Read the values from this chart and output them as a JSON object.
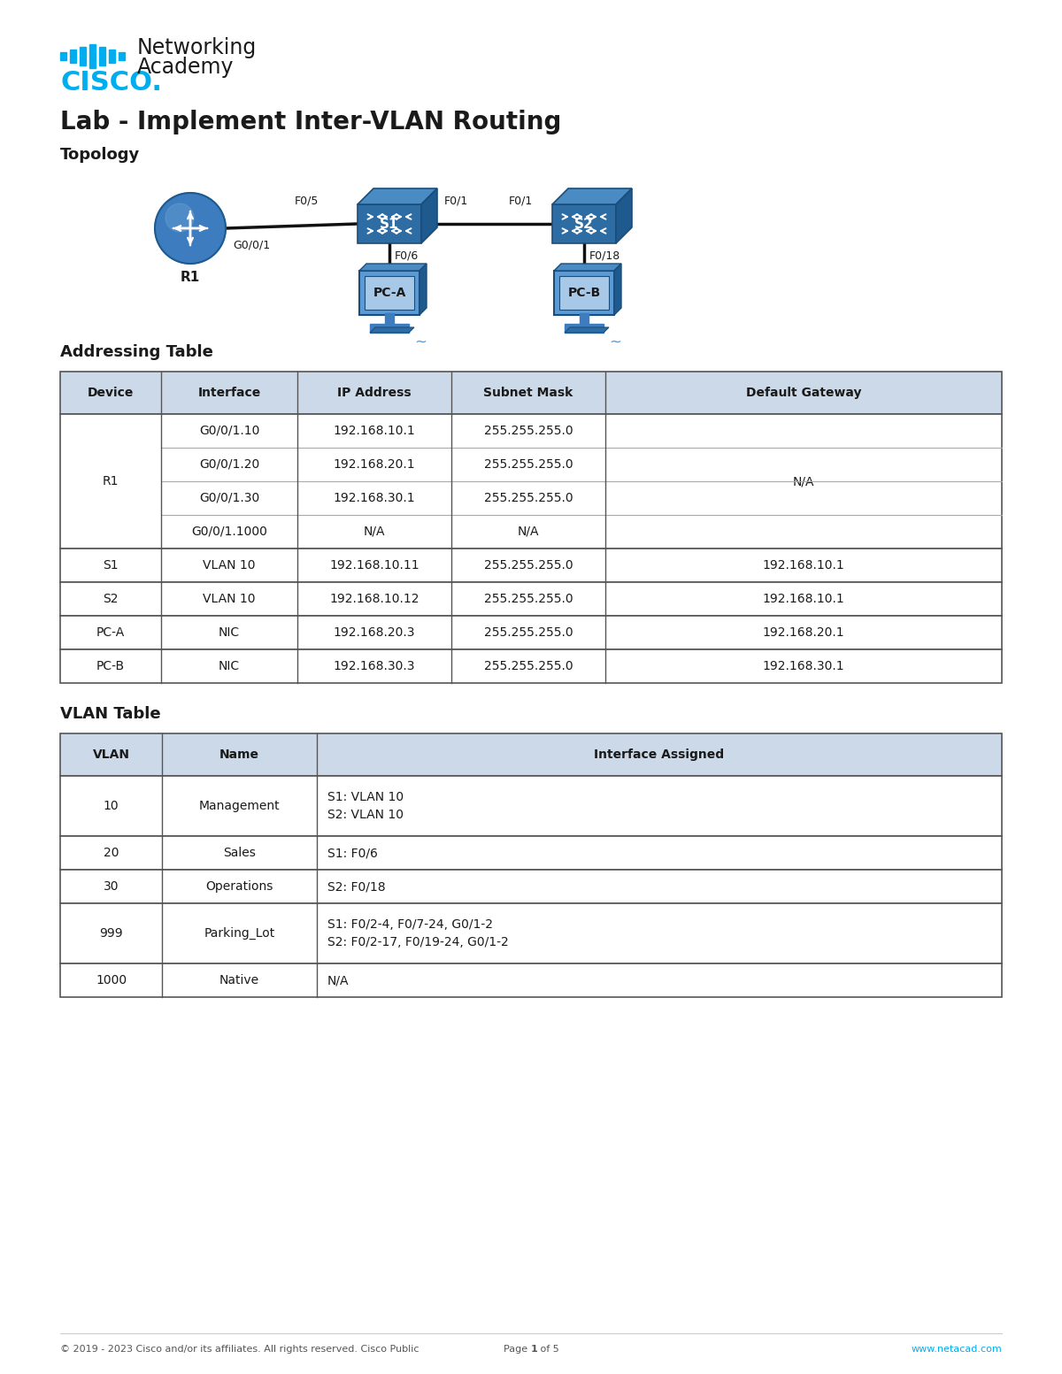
{
  "title": "Lab - Implement Inter-VLAN Routing",
  "topology_label": "Topology",
  "addressing_table_label": "Addressing Table",
  "vlan_table_label": "VLAN Table",
  "addr_headers": [
    "Device",
    "Interface",
    "IP Address",
    "Subnet Mask",
    "Default Gateway"
  ],
  "addr_rows": [
    [
      "R1",
      "G0/0/1.10",
      "192.168.10.1",
      "255.255.255.0",
      "N/A"
    ],
    [
      "",
      "G0/0/1.20",
      "192.168.20.1",
      "255.255.255.0",
      ""
    ],
    [
      "",
      "G0/0/1.30",
      "192.168.30.1",
      "255.255.255.0",
      ""
    ],
    [
      "",
      "G0/0/1.1000",
      "N/A",
      "N/A",
      ""
    ],
    [
      "S1",
      "VLAN 10",
      "192.168.10.11",
      "255.255.255.0",
      "192.168.10.1"
    ],
    [
      "S2",
      "VLAN 10",
      "192.168.10.12",
      "255.255.255.0",
      "192.168.10.1"
    ],
    [
      "PC-A",
      "NIC",
      "192.168.20.3",
      "255.255.255.0",
      "192.168.20.1"
    ],
    [
      "PC-B",
      "NIC",
      "192.168.30.3",
      "255.255.255.0",
      "192.168.30.1"
    ]
  ],
  "vlan_headers": [
    "VLAN",
    "Name",
    "Interface Assigned"
  ],
  "vlan_rows": [
    [
      "10",
      "Management",
      "S1: VLAN 10\nS2: VLAN 10"
    ],
    [
      "20",
      "Sales",
      "S1: F0/6"
    ],
    [
      "30",
      "Operations",
      "S2: F0/18"
    ],
    [
      "999",
      "Parking_Lot",
      "S1: F0/2-4, F0/7-24, G0/1-2\nS2: F0/2-17, F0/19-24, G0/1-2"
    ],
    [
      "1000",
      "Native",
      "N/A"
    ]
  ],
  "footer_left": "© 2019 - 2023 Cisco and/or its affiliates. All rights reserved. Cisco Public",
  "footer_center": "Page 1 of 5",
  "footer_center_bold": "1",
  "footer_right": "www.netacad.com",
  "bg_color": "#ffffff",
  "table_header_bg": "#ccd9e8",
  "cisco_blue": "#00aeef",
  "text_dark": "#1a1a1a",
  "border_dark": "#555555",
  "border_light": "#aaaaaa"
}
